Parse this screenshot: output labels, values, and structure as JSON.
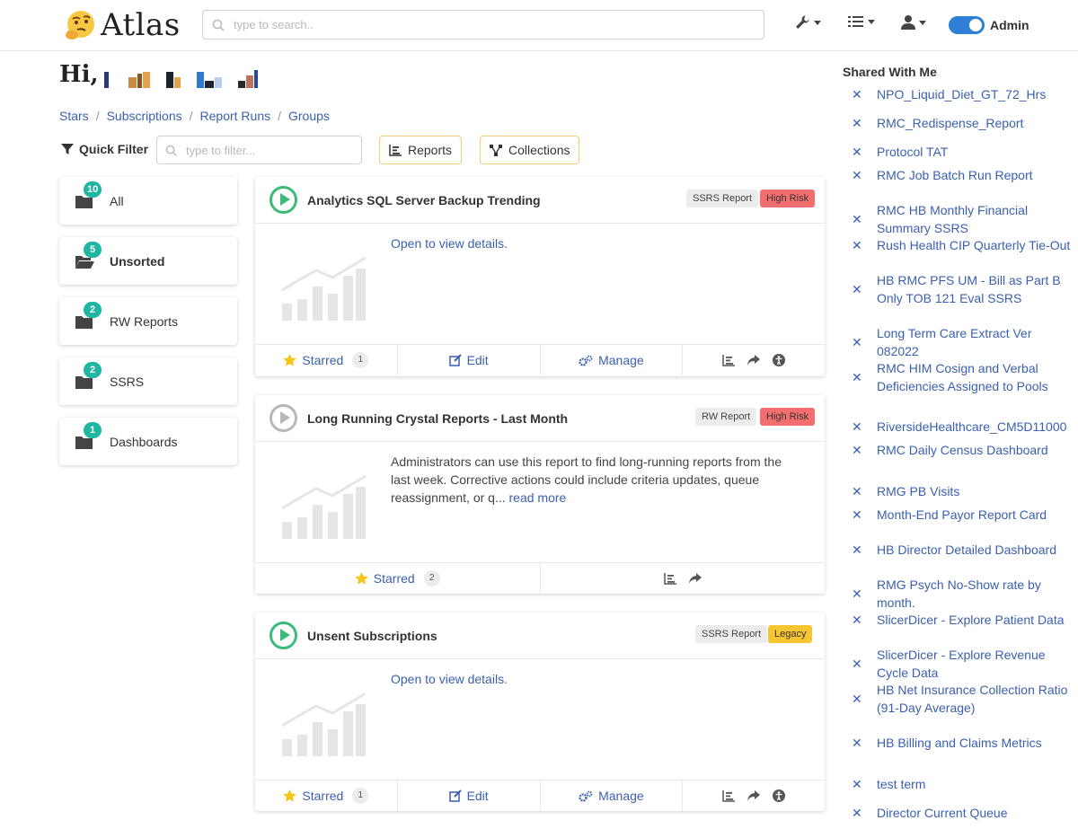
{
  "app": {
    "name": "Atlas"
  },
  "search": {
    "placeholder": "type to search.."
  },
  "header": {
    "admin_label": "Admin"
  },
  "greeting": {
    "prefix": "Hi,"
  },
  "breadcrumb": [
    "Stars",
    "Subscriptions",
    "Report Runs",
    "Groups"
  ],
  "quick_filter": {
    "label": "Quick Filter",
    "placeholder": "type to filter..."
  },
  "filter_buttons": {
    "reports": "Reports",
    "collections": "Collections"
  },
  "folders": [
    {
      "name": "All",
      "count": "10",
      "open": false
    },
    {
      "name": "Unsorted",
      "count": "5",
      "open": true
    },
    {
      "name": "RW Reports",
      "count": "2",
      "open": false
    },
    {
      "name": "SSRS",
      "count": "2",
      "open": false
    },
    {
      "name": "Dashboards",
      "count": "1",
      "open": false
    }
  ],
  "cards": [
    {
      "title": "Analytics SQL Server Backup Trending",
      "type": "SSRS Report",
      "risk": "High Risk",
      "body": "Open to view details.",
      "starred_label": "Starred",
      "starred_count": "1",
      "edit_label": "Edit",
      "manage_label": "Manage"
    },
    {
      "title": "Long Running Crystal Reports - Last Month",
      "type": "RW Report",
      "risk": "High Risk",
      "body": "Administrators can use this report to find long-running reports from the last week. Corrective actions could include criteria updates, queue reassignment, or q...",
      "read_more": "read more",
      "starred_label": "Starred",
      "starred_count": "2"
    },
    {
      "title": "Unsent Subscriptions",
      "type": "SSRS Report",
      "risk": "Legacy",
      "body": "Open to view details.",
      "starred_label": "Starred",
      "starred_count": "1",
      "edit_label": "Edit",
      "manage_label": "Manage"
    }
  ],
  "shared": {
    "title": "Shared With Me",
    "items": [
      "NPO_Liquid_Diet_GT_72_Hrs",
      "RMC_Redispense_Report",
      "Protocol TAT",
      "RMC Job Batch Run Report",
      "RMC HB Monthly Financial Summary SSRS",
      "Rush Health CIP Quarterly Tie-Out",
      "HB RMC PFS UM - Bill as Part B Only TOB 121 Eval SSRS",
      "Long Term Care Extract Ver 082022",
      "RMC HIM Cosign and Verbal Deficiencies Assigned to Pools",
      "RiversideHealthcare_CM5D11000",
      "RMC Daily Census Dashboard",
      "RMG PB Visits",
      "Month-End Payor Report Card",
      "HB Director Detailed Dashboard",
      "RMG Psych No-Show rate by month.",
      "SlicerDicer - Explore Patient Data",
      "SlicerDicer - Explore Revenue Cycle Data",
      "HB Net Insurance Collection Ratio (91-Day Average)",
      "HB Billing and Claims Metrics",
      "test term",
      "Director Current Queue"
    ]
  },
  "colors": {
    "accent": "#3b5fb0",
    "badge": "#20b7a2",
    "high_risk": "#f36f6f",
    "legacy": "#f7c531",
    "toggle": "#2f7fd6"
  },
  "icons": [
    "search-icon",
    "wrench-icon",
    "list-icon",
    "user-icon",
    "filter-icon",
    "bar-chart-icon",
    "network-icon",
    "folder-icon",
    "play-icon",
    "star-icon",
    "edit-icon",
    "cogs-icon",
    "share-icon",
    "accessibility-icon",
    "close-icon"
  ]
}
